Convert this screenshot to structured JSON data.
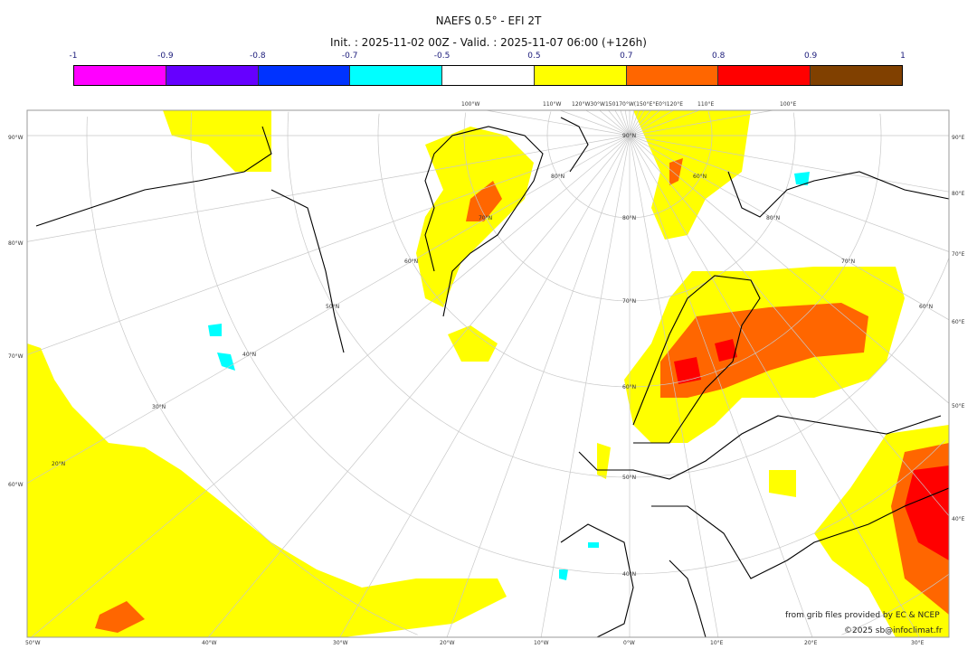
{
  "title": "NAEFS 0.5° - EFI 2T",
  "subtitle": "Init. : 2025-11-02 00Z - Valid. : 2025-11-07 06:00 (+126h)",
  "colorbar": {
    "ticks": [
      "-1",
      "-0.9",
      "-0.8",
      "-0.7",
      "-0.5",
      "0.5",
      "0.7",
      "0.8",
      "0.9",
      "1"
    ],
    "colors": [
      "#ff00ff",
      "#6600ff",
      "#0033ff",
      "#00ffff",
      "#ffffff",
      "#ffff00",
      "#ff6600",
      "#ff0000",
      "#804000"
    ]
  },
  "axes": {
    "left": [
      "90°W",
      "80°W",
      "70°W",
      "60°W"
    ],
    "right": [
      "90°E",
      "80°E",
      "70°E",
      "60°E",
      "50°E",
      "40°E"
    ],
    "bottom": [
      "50°W",
      "40°W",
      "30°W",
      "20°W",
      "10°W",
      "0°W",
      "10°E",
      "20°E",
      "30°E"
    ],
    "top": [
      "100°W",
      "110°W",
      "120°W30°W150170°W(150°E°E0°I120°E",
      "110°E",
      "100°E"
    ],
    "lat_labels": [
      "90°N",
      "80°N",
      "70°N",
      "60°N",
      "50°N",
      "40°N",
      "60°N",
      "50°N",
      "40°N",
      "30°N",
      "20°N",
      "70°N",
      "80°N",
      "60°N",
      "80°N",
      "70°N",
      "60°N",
      "50°N"
    ]
  },
  "credits": {
    "line1": "from grib files provided by EC & NCEP",
    "line2": "©2025 sb@infoclimat.fr"
  }
}
